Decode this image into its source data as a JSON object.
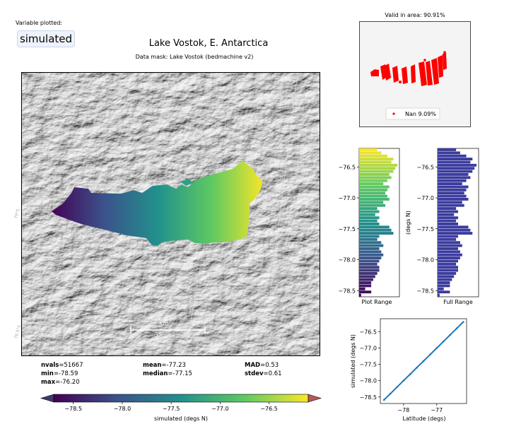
{
  "variable": {
    "label": "Variable plotted:",
    "value": "simulated"
  },
  "title": "Lake Vostok, E. Antarctica",
  "mask": "Data mask:  Lake Vostok (bedmachine v2)",
  "map": {
    "scalebar_label": "km",
    "scalebar_value": "100",
    "graticule_labels": [
      "79°S",
      "78.5°S"
    ]
  },
  "stats": {
    "col1": [
      {
        "k": "nvals",
        "v": "=51667"
      },
      {
        "k": "min",
        "v": "=-78.59"
      },
      {
        "k": "max",
        "v": "=-76.20"
      }
    ],
    "col2": [
      {
        "k": "mean",
        "v": "=-77.23"
      },
      {
        "k": "median",
        "v": "=-77.15"
      }
    ],
    "col3": [
      {
        "k": "MAD",
        "v": "=0.53"
      },
      {
        "k": "stdev",
        "v": "=0.61"
      }
    ]
  },
  "colorbar": {
    "label": "simulated (degs N)",
    "range": [
      -78.7,
      -76.1
    ],
    "ticks": [
      -78.5,
      -78.0,
      -77.5,
      -77.0,
      -76.5
    ],
    "tick_labels": [
      "−78.5",
      "−78.0",
      "−77.5",
      "−77.0",
      "−76.5"
    ],
    "colors": [
      "#440154",
      "#3b528b",
      "#21918c",
      "#5ec962",
      "#fde725"
    ],
    "under_color": "#3b3b66",
    "over_color": "#b55a5a"
  },
  "valid": {
    "title": "Valid in area: 90.91%",
    "legend": "Nan 9.09%",
    "color": "#ff0000"
  },
  "chart_data": [
    {
      "type": "bar",
      "orientation": "horizontal",
      "xlabel": "Plot Range",
      "ylabel": "",
      "ylim": [
        -78.6,
        -76.2
      ],
      "yticks": [
        -78.5,
        -78.0,
        -77.5,
        -77.0,
        -76.5
      ],
      "ytick_labels": [
        "−78.5",
        "−78.0",
        "−77.5",
        "−77.0",
        "−76.5"
      ],
      "colormap": "viridis",
      "bin_start": -78.6,
      "bin_width": 0.05,
      "values": [
        0.05,
        0.3,
        0.15,
        0.3,
        0.3,
        0.35,
        0.4,
        0.45,
        0.5,
        0.5,
        0.45,
        0.5,
        0.55,
        0.6,
        0.55,
        0.5,
        0.6,
        0.55,
        0.45,
        0.5,
        0.85,
        0.8,
        0.75,
        0.5,
        0.45,
        0.5,
        0.4,
        0.5,
        0.45,
        0.65,
        0.6,
        0.75,
        0.7,
        0.65,
        0.7,
        0.75,
        0.6,
        0.7,
        0.8,
        0.75,
        0.85,
        0.9,
        0.95,
        0.8,
        0.85,
        0.7,
        0.55,
        0.45
      ]
    },
    {
      "type": "bar",
      "orientation": "horizontal",
      "xlabel": "Full Range",
      "ylabel": "(degs N)",
      "ylim": [
        -78.6,
        -76.2
      ],
      "yticks": [
        -78.5,
        -78.0,
        -77.5,
        -77.0,
        -76.5
      ],
      "ytick_labels": [
        "−78.5",
        "−78.0",
        "−77.5",
        "−77.0",
        "−76.5"
      ],
      "color": "#3b3b9e",
      "bin_start": -78.6,
      "bin_width": 0.05,
      "values": [
        0.05,
        0.3,
        0.15,
        0.3,
        0.3,
        0.35,
        0.4,
        0.45,
        0.5,
        0.5,
        0.45,
        0.5,
        0.55,
        0.6,
        0.55,
        0.5,
        0.6,
        0.55,
        0.45,
        0.5,
        0.85,
        0.8,
        0.75,
        0.5,
        0.45,
        0.5,
        0.4,
        0.5,
        0.45,
        0.65,
        0.6,
        0.75,
        0.7,
        0.65,
        0.7,
        0.75,
        0.6,
        0.7,
        0.8,
        0.75,
        0.85,
        0.9,
        0.95,
        0.8,
        0.85,
        0.7,
        0.55,
        0.45
      ]
    },
    {
      "type": "scatter",
      "xlabel": "Latitude (degs)",
      "ylabel": "simulated (degs N)",
      "xlim": [
        -78.7,
        -76.1
      ],
      "ylim": [
        -78.7,
        -76.1
      ],
      "xticks": [
        -78,
        -77
      ],
      "xtick_labels": [
        "−78",
        "−77"
      ],
      "yticks": [
        -78.5,
        -78.0,
        -77.5,
        -77.0,
        -76.5
      ],
      "ytick_labels": [
        "−78.5",
        "−78.0",
        "−77.5",
        "−77.0",
        "−76.5"
      ],
      "color": "#1f77b4",
      "x": [
        -78.59,
        -78.4,
        -78.2,
        -78.0,
        -77.8,
        -77.6,
        -77.4,
        -77.2,
        -77.0,
        -76.8,
        -76.6,
        -76.4,
        -76.2
      ],
      "y": [
        -78.59,
        -78.4,
        -78.2,
        -78.0,
        -77.8,
        -77.6,
        -77.4,
        -77.2,
        -77.0,
        -76.8,
        -76.6,
        -76.4,
        -76.2
      ]
    }
  ]
}
